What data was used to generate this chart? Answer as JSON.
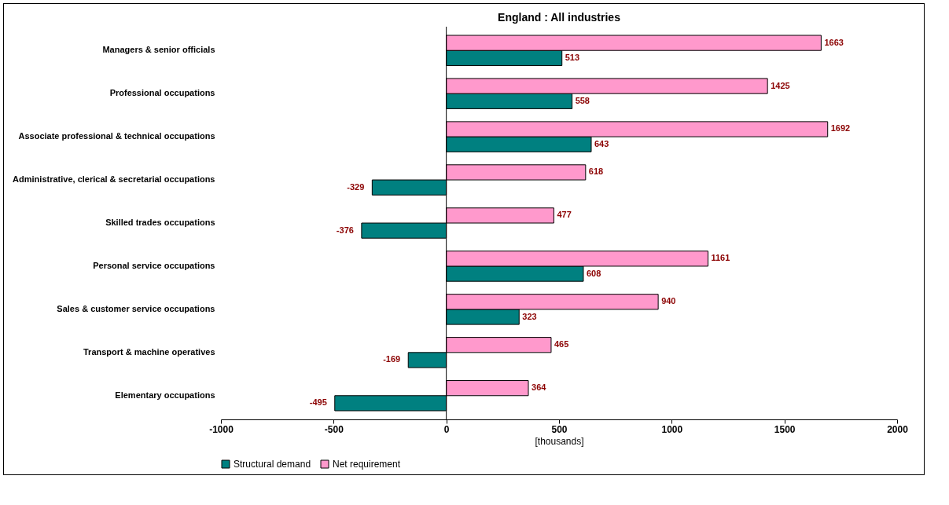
{
  "chart_data": {
    "type": "bar",
    "orientation": "horizontal",
    "title": "England : All industries",
    "xlabel": "[thousands]",
    "categories": [
      "Managers & senior officials",
      "Professional occupations",
      "Associate professional & technical occupations",
      "Administrative, clerical & secretarial occupations",
      "Skilled trades occupations",
      "Personal service occupations",
      "Sales & customer service occupations",
      "Transport & machine operatives",
      "Elementary occupations"
    ],
    "series": [
      {
        "name": "Structural demand",
        "color": "#008080",
        "values": [
          513,
          558,
          643,
          -329,
          -376,
          608,
          323,
          -169,
          -495
        ]
      },
      {
        "name": "Net requirement",
        "color": "#ff99cc",
        "values": [
          1663,
          1425,
          1692,
          618,
          477,
          1161,
          940,
          465,
          364
        ]
      }
    ],
    "xlim": [
      -1000,
      2000
    ],
    "xticks": [
      -1000,
      -500,
      0,
      500,
      1000,
      1500,
      2000
    ],
    "legend": "bottom",
    "data_labels": true
  }
}
